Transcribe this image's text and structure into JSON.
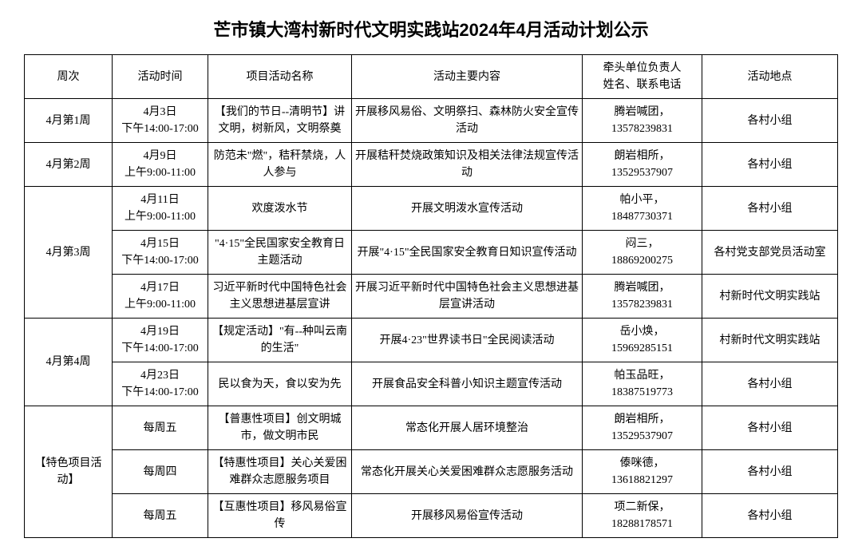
{
  "title": "芒市镇大湾村新时代文明实践站2024年4月活动计划公示",
  "columns": [
    "周次",
    "活动时间",
    "项目活动名称",
    "活动主要内容",
    "牵头单位负责人\n姓名、联系电话",
    "活动地点"
  ],
  "rows": [
    {
      "week": "4月第1周",
      "time": "4月3日\n下午14:00-17:00",
      "name": "【我们的节日--清明节】讲文明，树新风，文明祭奠",
      "content": "开展移风易俗、文明祭扫、森林防火安全宣传活动",
      "contact": "腾岩喊团，\n13578239831",
      "location": "各村小组"
    },
    {
      "week": "4月第2周",
      "time": "4月9日\n上午9:00-11:00",
      "name": "防范未\"燃\"，秸秆禁烧，人人参与",
      "content": "开展秸秆焚烧政策知识及相关法律法规宣传活动",
      "contact": "朗岩相所，\n13529537907",
      "location": "各村小组"
    },
    {
      "week": "",
      "time": "4月11日\n上午9:00-11:00",
      "name": "欢度泼水节",
      "content": "开展文明泼水宣传活动",
      "contact": "帕小平，\n18487730371",
      "location": "各村小组",
      "rowspan_week": 3,
      "week_label": "4月第3周"
    },
    {
      "week": "",
      "time": "4月15日\n下午14:00-17:00",
      "name": "\"4·15\"全民国家安全教育日主题活动",
      "content": "开展\"4·15\"全民国家安全教育日知识宣传活动",
      "contact": "闷三，\n18869200275",
      "location": "各村党支部党员活动室"
    },
    {
      "week": "",
      "time": "4月17日\n上午9:00-11:00",
      "name": "习近平新时代中国特色社会主义思想进基层宣讲",
      "content": "开展习近平新时代中国特色社会主义思想进基层宣讲活动",
      "contact": "腾岩喊团，\n13578239831",
      "location": "村新时代文明实践站"
    },
    {
      "week": "",
      "time": "4月19日\n下午14:00-17:00",
      "name": "【规定活动】\"有--种叫云南的生活\"",
      "content": "开展4·23\"世界读书日\"全民阅读活动",
      "contact": "岳小焕，\n15969285151",
      "location": "村新时代文明实践站",
      "rowspan_week": 2,
      "week_label": "4月第4周"
    },
    {
      "week": "",
      "time": "4月23日\n下午14:00-17:00",
      "name": "民以食为天，食以安为先",
      "content": "开展食品安全科普小知识主题宣传活动",
      "contact": "帕玉品旺，\n18387519773",
      "location": "各村小组"
    },
    {
      "week": "",
      "time": "每周五",
      "name": "【普惠性项目】创文明城市，做文明市民",
      "content": "常态化开展人居环境整治",
      "contact": "朗岩相所，\n13529537907",
      "location": "各村小组",
      "rowspan_week": 3,
      "week_label": "【特色项目活动】"
    },
    {
      "week": "",
      "time": "每周四",
      "name": "【特惠性项目】关心关爱困难群众志愿服务项目",
      "content": "常态化开展关心关爱困难群众志愿服务活动",
      "contact": "傣咪德，\n13618821297",
      "location": "各村小组"
    },
    {
      "week": "",
      "time": "每周五",
      "name": "【互惠性项目】移风易俗宣传",
      "content": "开展移风易俗宣传活动",
      "contact": "项二新保，\n18288178571",
      "location": "各村小组"
    }
  ],
  "styling": {
    "background_color": "#ffffff",
    "border_color": "#000000",
    "title_fontsize": 22,
    "cell_fontsize": 14,
    "font_family": "SimSun"
  }
}
